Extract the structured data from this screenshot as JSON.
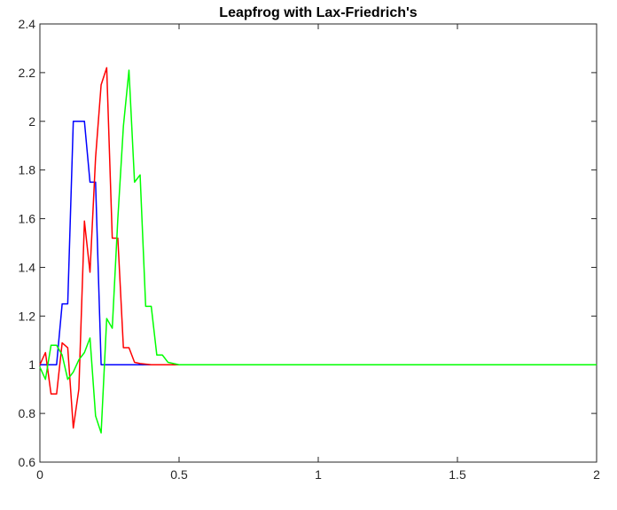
{
  "chart_data": {
    "type": "line",
    "title": "Leapfrog with Lax-Friedrich's",
    "xlabel": "",
    "ylabel": "",
    "xlim": [
      0,
      2
    ],
    "ylim": [
      0.6,
      2.4
    ],
    "xticks": [
      0,
      0.5,
      1,
      1.5,
      2
    ],
    "xtick_labels": [
      "0",
      "0.5",
      "1",
      "1.5",
      "2"
    ],
    "yticks": [
      0.6,
      0.8,
      1,
      1.2,
      1.4,
      1.6,
      1.8,
      2,
      2.2,
      2.4
    ],
    "ytick_labels": [
      "0.6",
      "0.8",
      "1",
      "1.2",
      "1.4",
      "1.6",
      "1.8",
      "2",
      "2.2",
      "2.4"
    ],
    "grid": false,
    "series": [
      {
        "color": "#0000ff",
        "x": [
          0,
          0.06,
          0.08,
          0.1,
          0.12,
          0.14,
          0.16,
          0.18,
          0.2,
          0.22,
          2
        ],
        "y": [
          1,
          1,
          1.25,
          1.25,
          2,
          2,
          2,
          1.75,
          1.75,
          1,
          1
        ]
      },
      {
        "color": "#ff0000",
        "x": [
          0,
          0.02,
          0.04,
          0.06,
          0.08,
          0.1,
          0.12,
          0.14,
          0.16,
          0.18,
          0.2,
          0.22,
          0.24,
          0.26,
          0.28,
          0.3,
          0.32,
          0.34,
          0.36,
          0.4,
          0.5,
          2
        ],
        "y": [
          1,
          1.05,
          0.88,
          0.88,
          1.09,
          1.07,
          0.74,
          0.9,
          1.59,
          1.38,
          1.85,
          2.15,
          2.22,
          1.52,
          1.52,
          1.07,
          1.07,
          1.01,
          1.005,
          1,
          1,
          1
        ]
      },
      {
        "color": "#00ff00",
        "x": [
          0,
          0.02,
          0.04,
          0.06,
          0.08,
          0.1,
          0.12,
          0.14,
          0.16,
          0.18,
          0.2,
          0.22,
          0.24,
          0.26,
          0.28,
          0.3,
          0.32,
          0.34,
          0.36,
          0.38,
          0.4,
          0.42,
          0.44,
          0.46,
          0.5,
          0.55,
          2
        ],
        "y": [
          0.99,
          0.94,
          1.08,
          1.08,
          1.04,
          0.94,
          0.97,
          1.02,
          1.05,
          1.11,
          0.79,
          0.72,
          1.19,
          1.15,
          1.6,
          1.98,
          2.21,
          1.75,
          1.78,
          1.24,
          1.24,
          1.04,
          1.04,
          1.01,
          1.0,
          1,
          1
        ]
      }
    ]
  }
}
